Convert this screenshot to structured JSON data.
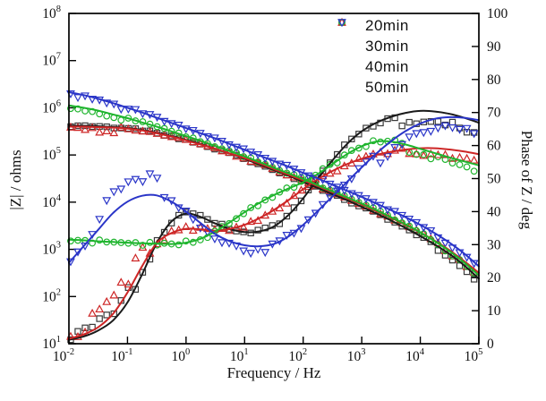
{
  "axes": {
    "x": {
      "label": "Frequency / Hz",
      "scale": "log",
      "tick_exponents": [
        -2,
        -1,
        0,
        1,
        2,
        3,
        4,
        5
      ]
    },
    "y_left": {
      "label": "|Z| / ohms",
      "scale": "log",
      "tick_exponents": [
        1,
        2,
        3,
        4,
        5,
        6,
        7,
        8
      ]
    },
    "y_right": {
      "label": "Phase of Z / deg",
      "scale": "linear",
      "min": 0,
      "max": 100,
      "ticks": [
        0,
        10,
        20,
        30,
        40,
        50,
        60,
        70,
        80,
        90,
        100
      ]
    }
  },
  "legend": {
    "items": [
      {
        "label": "20min",
        "marker": "square",
        "color": "#2b2b2b"
      },
      {
        "label": "30min",
        "marker": "triangle-up",
        "color": "#cd2626"
      },
      {
        "label": "40min",
        "marker": "circle",
        "color": "#1eb42d"
      },
      {
        "label": "50min",
        "marker": "triangle-down",
        "color": "#2a35c8"
      }
    ]
  },
  "chart_data": {
    "type": "line",
    "title": "",
    "xlabel": "Frequency / Hz",
    "ylabel_left": "|Z| / ohms",
    "ylabel_right": "Phase of Z / deg",
    "x_range_log10": [
      -2,
      5
    ],
    "y_left_range_log10": [
      1,
      8
    ],
    "y_right_range": [
      0,
      100
    ],
    "grid": false,
    "legend_position": "top-right-inside",
    "log_frequency": [
      -2,
      -1.75,
      -1.5,
      -1.25,
      -1,
      -0.75,
      -0.5,
      -0.25,
      0,
      0.25,
      0.5,
      0.75,
      1,
      1.25,
      1.5,
      1.75,
      2,
      2.25,
      2.5,
      2.75,
      3,
      3.25,
      3.5,
      3.75,
      4,
      4.25,
      4.5,
      4.75,
      5
    ],
    "marker_step_log10": 0.123,
    "default_jitter": {
      "impedance_log10": 0.02,
      "phase_deg": 0.7
    },
    "series": [
      {
        "name": "20min",
        "color": "#1a1a1a",
        "marker": "square",
        "marker_color": "#3a3a3a",
        "impedance_log10": [
          5.62,
          5.62,
          5.61,
          5.59,
          5.57,
          5.53,
          5.47,
          5.4,
          5.32,
          5.23,
          5.13,
          5.03,
          4.92,
          4.8,
          4.68,
          4.56,
          4.43,
          4.3,
          4.17,
          4.04,
          3.9,
          3.76,
          3.61,
          3.45,
          3.28,
          3.1,
          2.9,
          2.66,
          2.38
        ],
        "phase_deg": [
          1.2,
          2.2,
          4.0,
          7.0,
          12.5,
          21.0,
          30.5,
          37.0,
          39.4,
          38.4,
          36.4,
          34.7,
          33.8,
          34.0,
          35.5,
          39.0,
          44.0,
          50.0,
          55.5,
          60.5,
          64.3,
          66.9,
          68.7,
          69.9,
          70.5,
          70.3,
          69.6,
          68.4,
          66.9
        ],
        "impedance_marker_bias": [
          {
            "from": 4.3,
            "to": 5.1,
            "bias": -0.08,
            "amp": 0.03
          }
        ],
        "phase_marker_bias": [
          {
            "from": -1.9,
            "to": -0.9,
            "bias": 2.5,
            "amp": 1.6
          },
          {
            "from": 3.6,
            "to": 5.1,
            "bias": -3.2,
            "amp": 1.0
          }
        ]
      },
      {
        "name": "30min",
        "color": "#cd2626",
        "marker": "triangle-up",
        "marker_color": "#cd2626",
        "impedance_log10": [
          5.6,
          5.6,
          5.59,
          5.58,
          5.56,
          5.52,
          5.46,
          5.39,
          5.31,
          5.22,
          5.13,
          5.03,
          4.93,
          4.82,
          4.7,
          4.58,
          4.46,
          4.34,
          4.21,
          4.08,
          3.95,
          3.81,
          3.67,
          3.52,
          3.36,
          3.18,
          2.98,
          2.75,
          2.5
        ],
        "phase_deg": [
          1.5,
          2.8,
          5.0,
          9.0,
          15.5,
          23.5,
          30.5,
          33.5,
          34.8,
          34.6,
          34.2,
          34.8,
          36.0,
          38.0,
          40.5,
          43.5,
          46.8,
          49.8,
          52.3,
          54.4,
          56.0,
          57.2,
          58.1,
          58.8,
          59.2,
          59.2,
          58.8,
          58.2,
          57.4
        ],
        "impedance_marker_bias": [
          {
            "from": -2.1,
            "to": -1.2,
            "bias": -0.06,
            "amp": 0.05
          },
          {
            "from": 4.4,
            "to": 5.1,
            "bias": -0.05,
            "amp": 0.03
          }
        ],
        "phase_marker_bias": [
          {
            "from": -1.7,
            "to": -0.7,
            "bias": 4.0,
            "amp": 2.2
          },
          {
            "from": 3.8,
            "to": 5.1,
            "bias": -2.0,
            "amp": 0.8
          }
        ]
      },
      {
        "name": "40min",
        "color": "#1eb42d",
        "marker": "circle",
        "marker_color": "#1eb42d",
        "impedance_log10": [
          6.05,
          6.0,
          5.94,
          5.86,
          5.78,
          5.69,
          5.6,
          5.5,
          5.4,
          5.3,
          5.19,
          5.08,
          4.97,
          4.85,
          4.73,
          4.61,
          4.49,
          4.36,
          4.23,
          4.1,
          3.97,
          3.83,
          3.68,
          3.53,
          3.36,
          3.17,
          2.96,
          2.72,
          2.45
        ],
        "phase_deg": [
          31.5,
          31.3,
          31.0,
          30.8,
          30.6,
          30.4,
          30.3,
          30.2,
          30.6,
          31.8,
          34.0,
          36.8,
          39.8,
          42.6,
          45.0,
          47.0,
          48.9,
          51.4,
          54.4,
          57.4,
          59.8,
          61.2,
          61.2,
          60.3,
          59.0,
          57.7,
          56.4,
          55.2,
          54.0
        ],
        "impedance_marker_bias": [
          {
            "from": -2.1,
            "to": -1.1,
            "bias": -0.05,
            "amp": 0.03
          },
          {
            "from": 4.2,
            "to": 5.1,
            "bias": -0.04,
            "amp": 0.03
          }
        ],
        "phase_marker_bias": [
          {
            "from": 3.8,
            "to": 5.1,
            "bias": -1.6,
            "amp": 0.8
          }
        ]
      },
      {
        "name": "50min",
        "color": "#2a35c8",
        "marker": "triangle-down",
        "marker_color": "#2a35c8",
        "impedance_log10": [
          6.33,
          6.27,
          6.19,
          6.1,
          6.0,
          5.9,
          5.79,
          5.68,
          5.57,
          5.46,
          5.35,
          5.23,
          5.11,
          4.99,
          4.87,
          4.75,
          4.62,
          4.5,
          4.37,
          4.24,
          4.11,
          3.97,
          3.83,
          3.68,
          3.52,
          3.34,
          3.14,
          2.91,
          2.64
        ],
        "phase_deg": [
          24.5,
          29.5,
          34.5,
          39.5,
          43.0,
          44.8,
          44.9,
          43.0,
          40.0,
          36.5,
          33.2,
          31.0,
          29.8,
          29.5,
          30.2,
          32.5,
          36.0,
          40.2,
          44.6,
          49.0,
          53.4,
          57.6,
          61.3,
          64.4,
          66.7,
          68.1,
          68.6,
          68.4,
          67.7
        ],
        "impedance_marker_bias": [
          {
            "from": -2.1,
            "to": -1.0,
            "bias": -0.04,
            "amp": 0.045
          },
          {
            "from": 4.3,
            "to": 5.1,
            "bias": -0.05,
            "amp": 0.03
          }
        ],
        "phase_marker_bias": [
          {
            "from": -1.5,
            "to": -0.4,
            "bias": 4.5,
            "amp": 2.6
          },
          {
            "from": 0.1,
            "to": 1.4,
            "bias": -1.5,
            "amp": 1.0
          },
          {
            "from": 3.2,
            "to": 5.1,
            "bias": -3.0,
            "amp": 1.3
          }
        ]
      }
    ]
  }
}
